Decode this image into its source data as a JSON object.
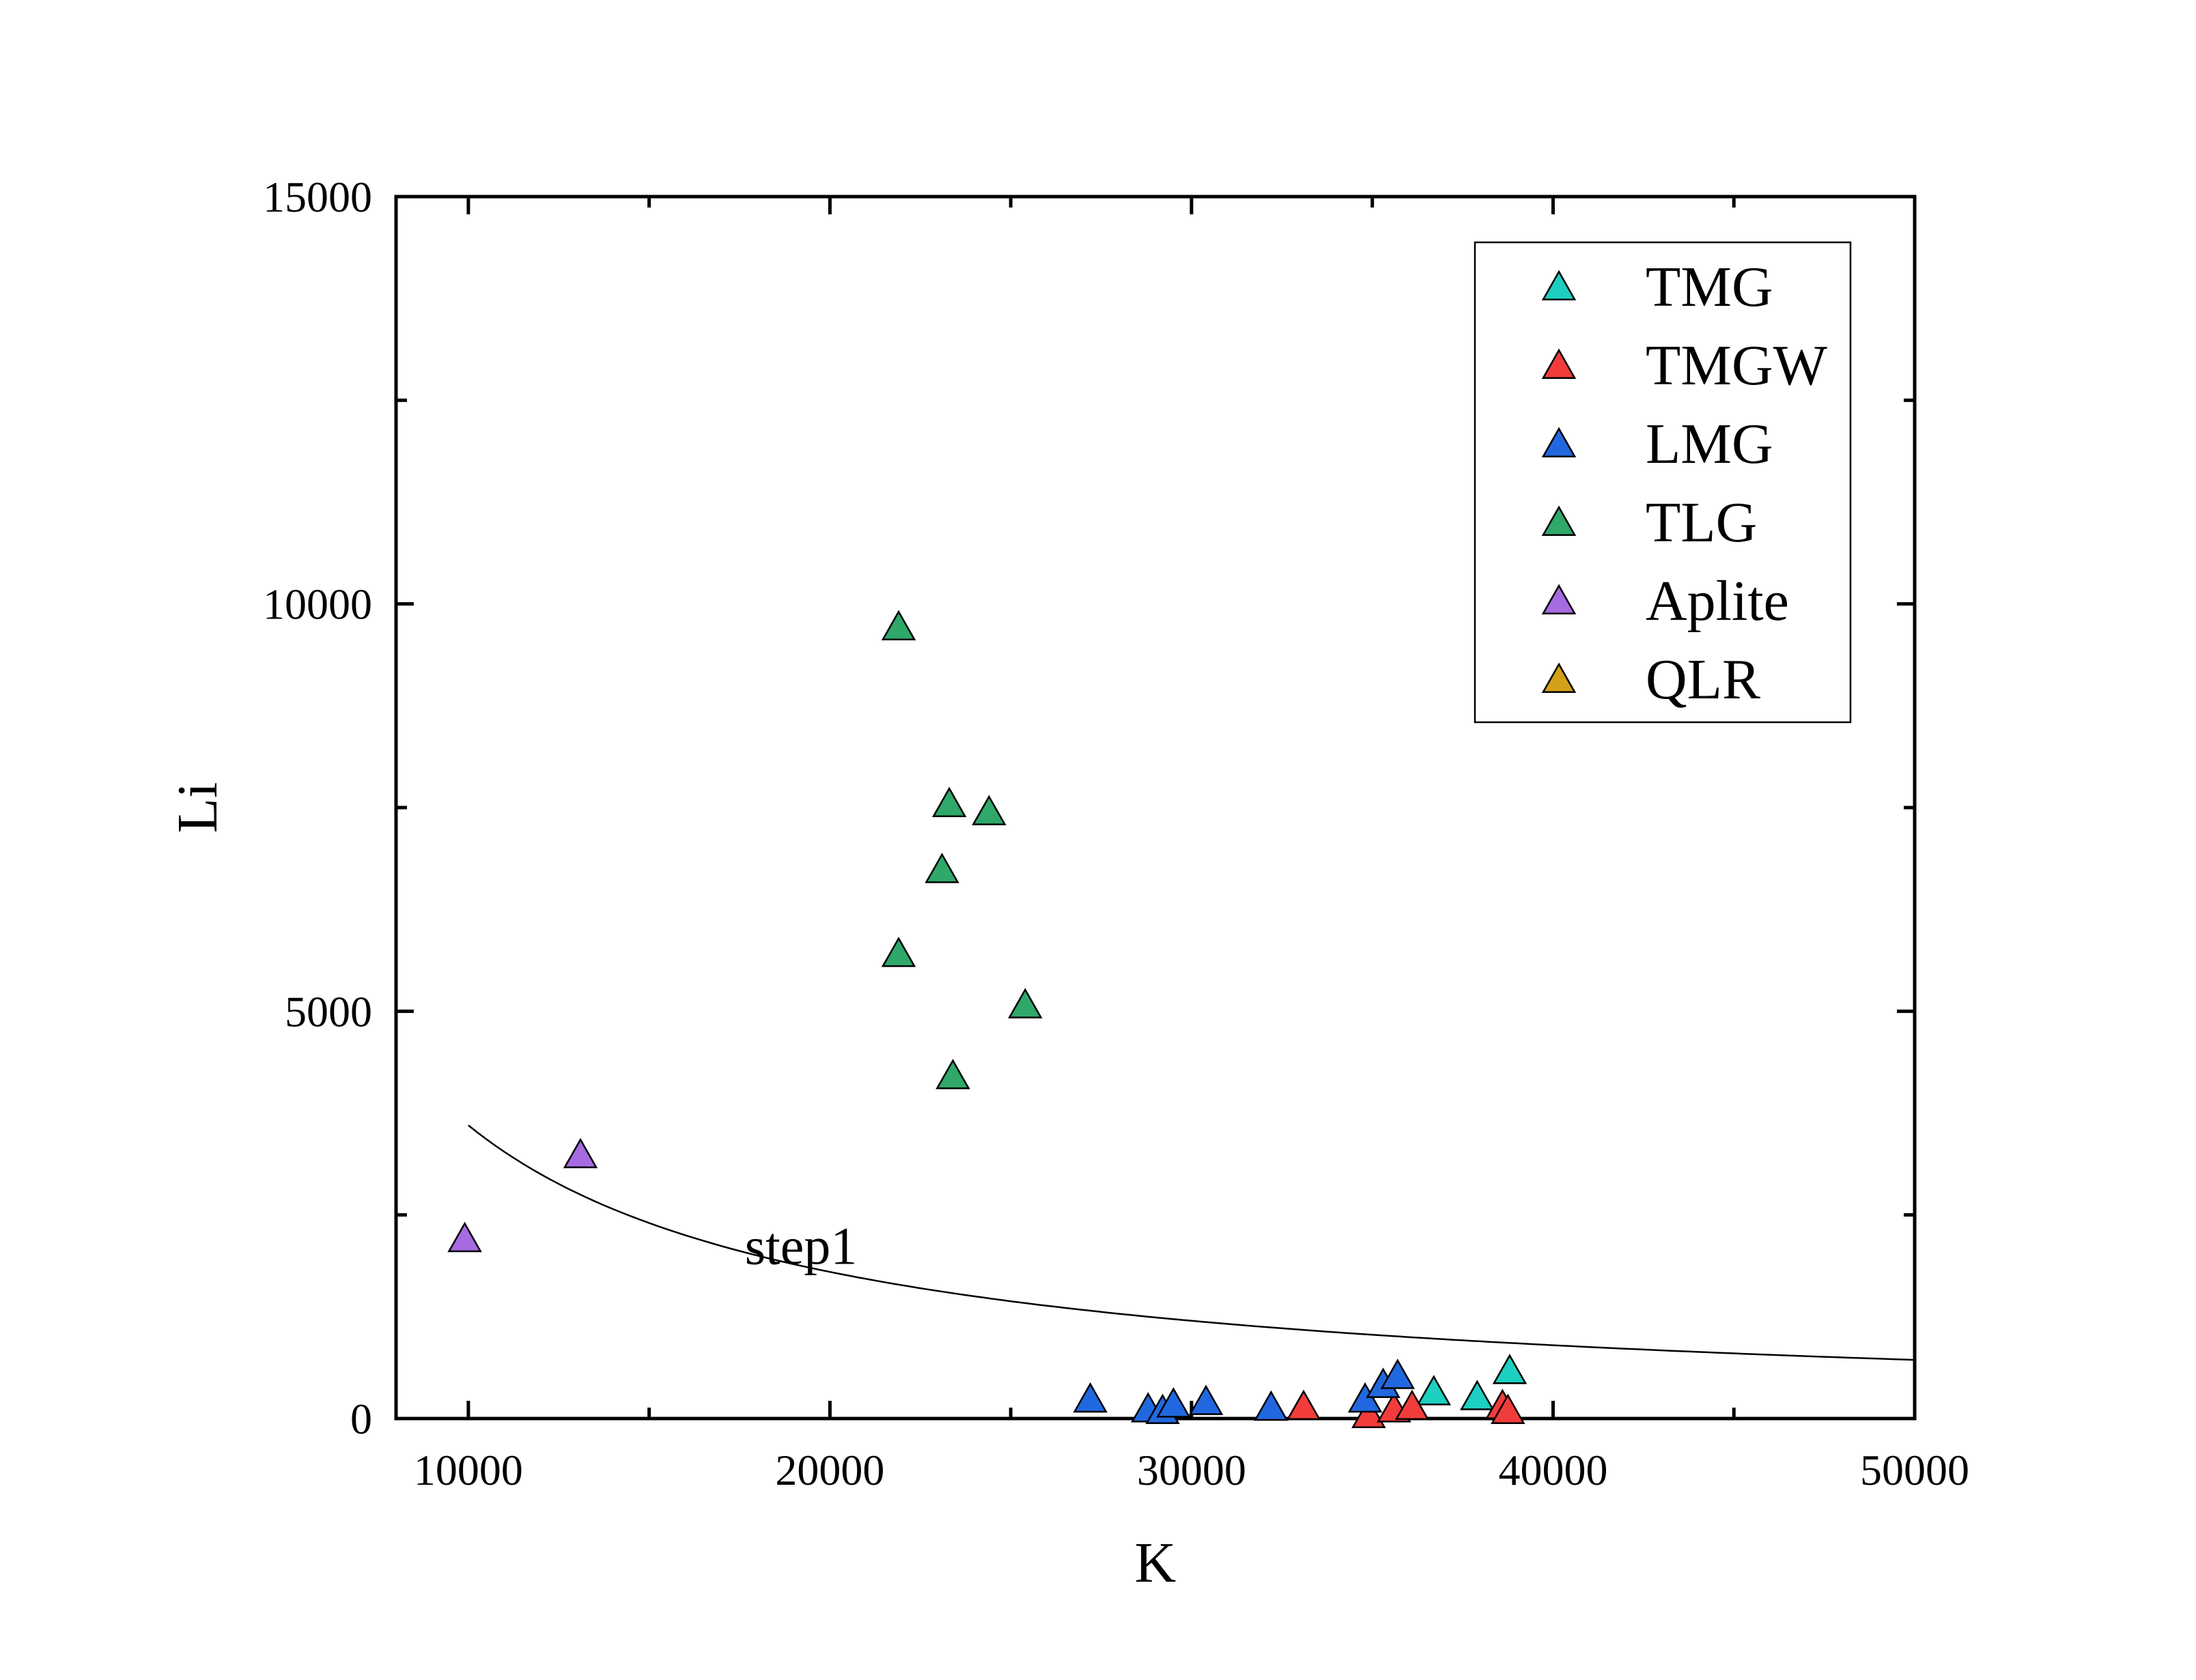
{
  "chart_data": {
    "type": "scatter",
    "title": "",
    "xlabel": "K",
    "ylabel": "Li",
    "xlim": [
      8000,
      50000
    ],
    "ylim": [
      0,
      15000
    ],
    "xticks": [
      10000,
      20000,
      30000,
      40000,
      50000
    ],
    "xtick_labels": [
      "10000",
      "20000",
      "30000",
      "40000",
      "50000"
    ],
    "yticks": [
      0,
      5000,
      10000,
      15000
    ],
    "ytick_labels": [
      "0",
      "5000",
      "10000",
      "15000"
    ],
    "grid": false,
    "legend_position": "top-right",
    "marker": "triangle",
    "series": [
      {
        "name": "TMG",
        "color": "#1ccfc0",
        "points": [
          [
            36700,
            330
          ],
          [
            37900,
            270
          ],
          [
            38800,
            590
          ]
        ]
      },
      {
        "name": "TMGW",
        "color": "#f23c3c",
        "points": [
          [
            33100,
            150
          ],
          [
            34900,
            50
          ],
          [
            35600,
            120
          ],
          [
            36100,
            150
          ],
          [
            38600,
            160
          ],
          [
            38750,
            100
          ]
        ]
      },
      {
        "name": "LMG",
        "color": "#2168e0",
        "points": [
          [
            27200,
            240
          ],
          [
            28800,
            120
          ],
          [
            29200,
            100
          ],
          [
            29500,
            180
          ],
          [
            30400,
            210
          ],
          [
            32200,
            140
          ],
          [
            34800,
            240
          ],
          [
            35300,
            420
          ],
          [
            35700,
            530
          ]
        ]
      },
      {
        "name": "TLG",
        "color": "#2fa86a",
        "points": [
          [
            21900,
            9720
          ],
          [
            23300,
            7550
          ],
          [
            24400,
            7450
          ],
          [
            23100,
            6740
          ],
          [
            21900,
            5710
          ],
          [
            25400,
            5080
          ],
          [
            23400,
            4210
          ]
        ]
      },
      {
        "name": "Aplite",
        "color": "#a66be0",
        "points": [
          [
            9900,
            2210
          ],
          [
            13100,
            3240
          ]
        ]
      },
      {
        "name": "QLR",
        "color": "#d4a017",
        "points": []
      }
    ],
    "curve": {
      "name": "step1",
      "function": "Li = 3.6e7 / K",
      "x_range": [
        10000,
        50000
      ]
    },
    "annotations": [
      {
        "text": "step1",
        "x": 19200,
        "y": 1900
      }
    ]
  }
}
